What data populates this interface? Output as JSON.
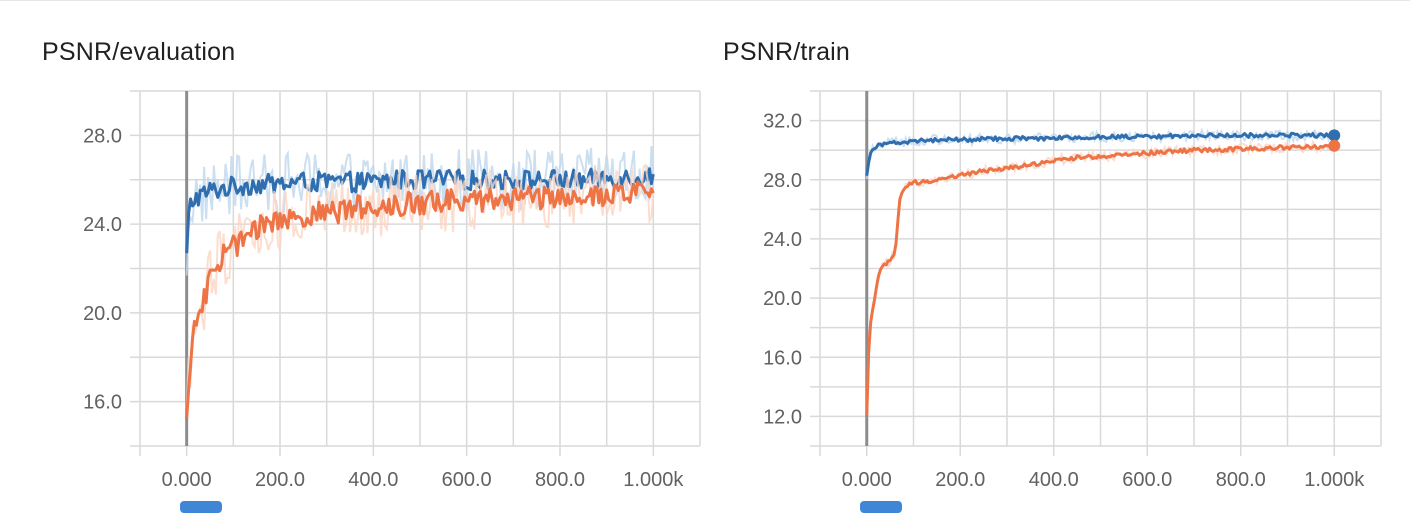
{
  "colors": {
    "eval_series": "#2f6fb0",
    "train_series": "#ee7345",
    "eval_raw": "#bfd7ee",
    "train_raw": "#fbd6c6",
    "grid": "#d9d9d9",
    "zero_axis": "#8c8c8c"
  },
  "chart_data": [
    {
      "type": "line",
      "title": "PSNR/evaluation",
      "xlim": [
        -100,
        1100
      ],
      "ylim": [
        14,
        30
      ],
      "x_ticks": [
        "0.000",
        "200.0",
        "400.0",
        "600.0",
        "800.0",
        "1.000k"
      ],
      "x_tick_values": [
        0,
        200,
        400,
        600,
        800,
        1000
      ],
      "y_ticks": [
        "16.0",
        "20.0",
        "24.0",
        "28.0"
      ],
      "y_tick_values": [
        16,
        20,
        24,
        28
      ],
      "grid": true,
      "series": [
        {
          "color": "#2f6fb0",
          "x": [
            0,
            5,
            10,
            20,
            30,
            50,
            75,
            100,
            150,
            200,
            250,
            300,
            350,
            400,
            450,
            500,
            550,
            600,
            650,
            700,
            750,
            800,
            850,
            900,
            950,
            1000
          ],
          "y": [
            22.5,
            24.6,
            25.0,
            25.2,
            25.3,
            25.5,
            25.6,
            25.7,
            25.8,
            25.8,
            25.9,
            25.9,
            25.9,
            25.9,
            26.0,
            26.0,
            26.0,
            26.0,
            26.0,
            26.0,
            26.0,
            26.0,
            26.0,
            26.1,
            26.1,
            26.2
          ]
        },
        {
          "color": "#ee7345",
          "x": [
            0,
            5,
            10,
            20,
            30,
            40,
            50,
            75,
            100,
            150,
            200,
            250,
            300,
            350,
            400,
            450,
            500,
            550,
            600,
            650,
            700,
            750,
            800,
            850,
            900,
            950,
            1000
          ],
          "y": [
            15.0,
            17.0,
            18.5,
            19.5,
            20.0,
            20.8,
            21.5,
            22.5,
            23.0,
            23.8,
            24.2,
            24.4,
            24.5,
            24.7,
            24.8,
            24.9,
            25.0,
            25.0,
            25.1,
            25.1,
            25.2,
            25.2,
            25.3,
            25.3,
            25.3,
            25.4,
            25.4
          ]
        }
      ]
    },
    {
      "type": "line",
      "title": "PSNR/train",
      "xlim": [
        -100,
        1100
      ],
      "ylim": [
        10,
        34
      ],
      "x_ticks": [
        "0.000",
        "200.0",
        "400.0",
        "600.0",
        "800.0",
        "1.000k"
      ],
      "x_tick_values": [
        0,
        200,
        400,
        600,
        800,
        1000
      ],
      "y_ticks": [
        "12.0",
        "16.0",
        "20.0",
        "24.0",
        "28.0",
        "32.0"
      ],
      "y_tick_values": [
        12,
        16,
        20,
        24,
        28,
        32
      ],
      "grid": true,
      "series": [
        {
          "color": "#2f6fb0",
          "x": [
            0,
            5,
            10,
            20,
            30,
            50,
            100,
            150,
            200,
            300,
            400,
            500,
            600,
            700,
            800,
            900,
            1000
          ],
          "y": [
            28.2,
            29.5,
            30.0,
            30.3,
            30.4,
            30.5,
            30.6,
            30.7,
            30.7,
            30.8,
            30.8,
            30.9,
            30.9,
            31.0,
            31.0,
            31.0,
            31.0
          ]
        },
        {
          "color": "#ee7345",
          "x": [
            0,
            3,
            6,
            10,
            15,
            20,
            25,
            30,
            40,
            50,
            60,
            65,
            70,
            75,
            80,
            90,
            100,
            150,
            200,
            250,
            300,
            350,
            400,
            450,
            500,
            550,
            600,
            650,
            700,
            750,
            800,
            850,
            900,
            950,
            1000
          ],
          "y": [
            12.0,
            15.5,
            17.5,
            18.8,
            19.5,
            20.5,
            21.5,
            22.0,
            22.3,
            22.5,
            23.0,
            24.5,
            26.5,
            27.0,
            27.3,
            27.6,
            27.8,
            28.0,
            28.3,
            28.6,
            28.8,
            29.0,
            29.3,
            29.5,
            29.6,
            29.7,
            29.8,
            29.9,
            30.0,
            30.0,
            30.1,
            30.1,
            30.2,
            30.2,
            30.3
          ]
        }
      ]
    }
  ]
}
